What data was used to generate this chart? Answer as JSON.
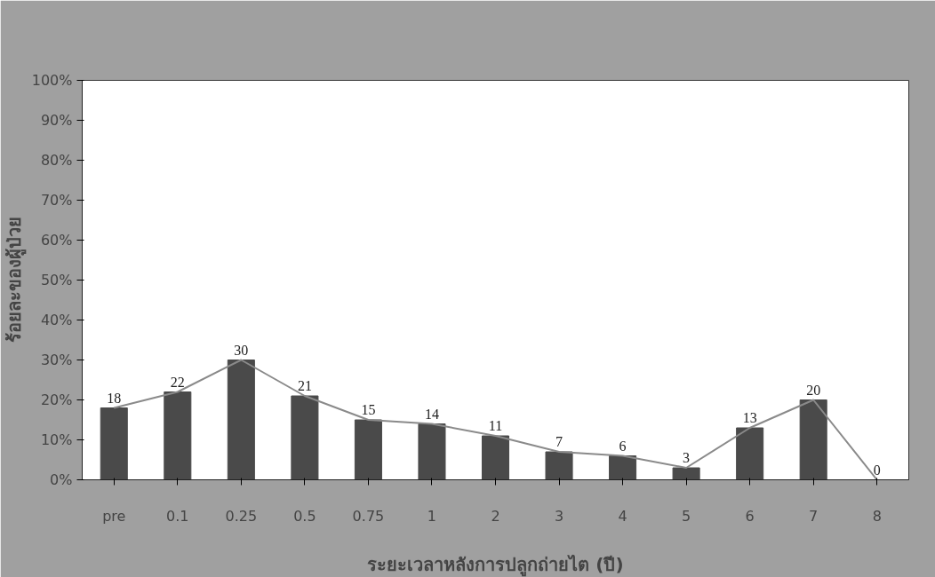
{
  "chart_data": {
    "type": "bar",
    "xlabel": "ระยะเวลาหลังการปลูกถ่ายไต (ปี)",
    "ylabel": "ร้อยละของผู้ป่วย",
    "categories": [
      "pre",
      "0.1",
      "0.25",
      "0.5",
      "0.75",
      "1",
      "2",
      "3",
      "4",
      "5",
      "6",
      "7",
      "8"
    ],
    "series": [
      {
        "color": "#4a4a4a",
        "values": [
          18,
          22,
          30,
          21,
          15,
          14,
          11,
          7,
          6,
          3,
          13,
          20,
          0
        ],
        "value_labels": [
          "18",
          "22",
          "30",
          "21",
          "15",
          "14",
          "11",
          "7",
          "6",
          "3",
          "13",
          "20",
          "0"
        ]
      },
      {
        "type": "line",
        "color": "#8a8a8a",
        "values": [
          18,
          22,
          30,
          21,
          15,
          14,
          11,
          7,
          6,
          3,
          13,
          20,
          0
        ]
      }
    ],
    "ylim": [
      0,
      100
    ],
    "yticks": [
      {
        "value": 0,
        "label": "0%"
      },
      {
        "value": 10,
        "label": "10%"
      },
      {
        "value": 20,
        "label": "20%"
      },
      {
        "value": 30,
        "label": "30%"
      },
      {
        "value": 40,
        "label": "40%"
      },
      {
        "value": 50,
        "label": "50%"
      },
      {
        "value": 60,
        "label": "60%"
      },
      {
        "value": 70,
        "label": "70%"
      },
      {
        "value": 80,
        "label": "80%"
      },
      {
        "value": 90,
        "label": "90%"
      },
      {
        "value": 100,
        "label": "100%"
      }
    ],
    "grid": false,
    "marker": "none",
    "line_style": "solid"
  }
}
